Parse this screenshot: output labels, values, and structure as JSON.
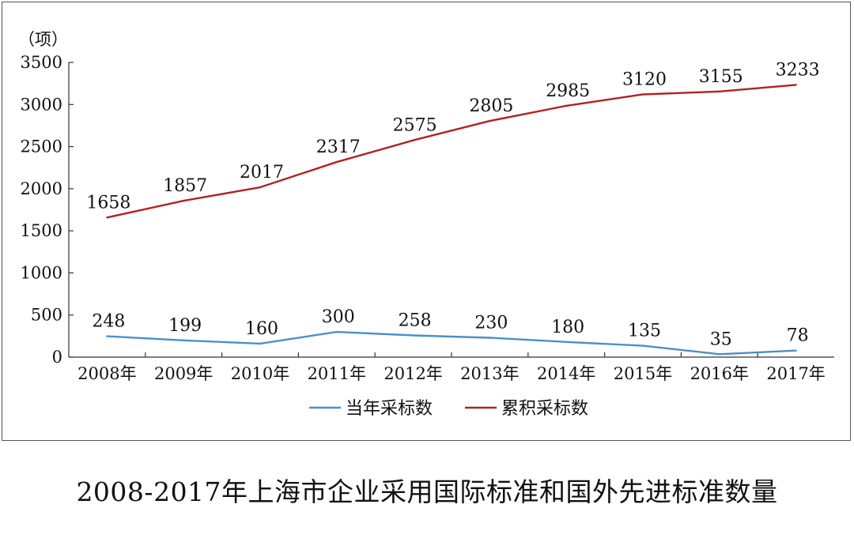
{
  "caption": "2008-2017年上海市企业采用国际标准和国外先进标准数量",
  "chart_data": {
    "type": "line",
    "title": "2008-2017年上海市企业采用国际标准和国外先进标准数量",
    "ylabel": "（项）",
    "xlabel": "",
    "categories": [
      "2008年",
      "2009年",
      "2010年",
      "2011年",
      "2012年",
      "2013年",
      "2014年",
      "2015年",
      "2016年",
      "2017年"
    ],
    "y_ticks": [
      "0",
      "500",
      "1000",
      "1500",
      "2000",
      "2500",
      "3000",
      "3500"
    ],
    "ylim": [
      0,
      3500
    ],
    "grid": false,
    "legend_position": "bottom",
    "series": [
      {
        "name": "当年采标数",
        "color": "#4a90c8",
        "values": [
          248,
          199,
          160,
          300,
          258,
          230,
          180,
          135,
          35,
          78
        ],
        "labels": [
          "248",
          "199",
          "160",
          "300",
          "258",
          "230",
          "180",
          "135",
          "35",
          "78"
        ]
      },
      {
        "name": "累积采标数",
        "color": "#b22222",
        "values": [
          1658,
          1857,
          2017,
          2317,
          2575,
          2805,
          2985,
          3120,
          3155,
          3233
        ],
        "labels": [
          "1658",
          "1857",
          "2017",
          "2317",
          "2575",
          "2805",
          "2985",
          "3120",
          "3155",
          "3233"
        ]
      }
    ]
  }
}
